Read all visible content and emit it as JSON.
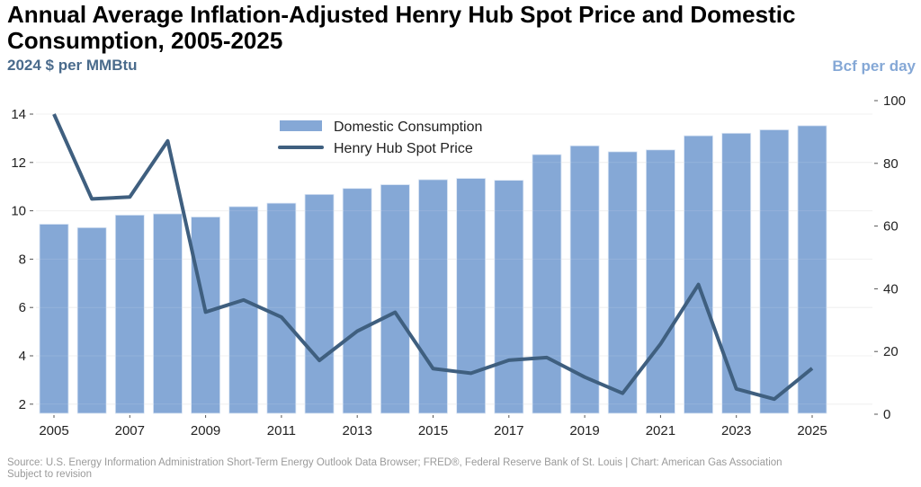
{
  "header": {
    "title": "Annual Average Inflation-Adjusted Henry Hub Spot Price and Domestic Consumption, 2005-2025",
    "left_axis_label": "2024 $ per MMBtu",
    "right_axis_label": "Bcf per day"
  },
  "footer": {
    "source": "Source: U.S. Energy Information Administration Short-Term Energy Outlook Data Browser; FRED®, Federal Reserve Bank of St. Louis | Chart: American Gas Association",
    "note": "Subject to revision"
  },
  "colors": {
    "bars": "#85a8d6",
    "line": "#3f5f7f",
    "left_axis_label": "#4a6b8c",
    "right_axis_label": "#85a8d6",
    "grid": "#eeeeee"
  },
  "chart_data": {
    "type": "bar+line",
    "title": "Annual Average Inflation-Adjusted Henry Hub Spot Price and Domestic Consumption, 2005-2025",
    "xlabel": "",
    "ylabel_left": "2024 $ per MMBtu",
    "ylabel_right": "Bcf per day",
    "x": [
      2005,
      2006,
      2007,
      2008,
      2009,
      2010,
      2011,
      2012,
      2013,
      2014,
      2015,
      2016,
      2017,
      2018,
      2019,
      2020,
      2021,
      2022,
      2023,
      2024,
      2025
    ],
    "x_tick_labels": [
      "2005",
      "2007",
      "2009",
      "2011",
      "2013",
      "2015",
      "2017",
      "2019",
      "2021",
      "2023",
      "2025"
    ],
    "y_left_ticks": [
      "2",
      "4",
      "6",
      "8",
      "10",
      "12",
      "14"
    ],
    "y_left_range": [
      1.6,
      14.6
    ],
    "y_right_ticks": [
      "0",
      "20",
      "40",
      "60",
      "80",
      "100"
    ],
    "y_right_range": [
      0,
      100
    ],
    "grid": true,
    "legend_position": "top-center",
    "series": [
      {
        "name": "Domestic Consumption",
        "type": "bar",
        "axis": "right",
        "values": [
          60.6,
          59.5,
          63.5,
          63.9,
          62.9,
          66.2,
          67.3,
          70.1,
          72.0,
          73.2,
          74.8,
          75.2,
          74.6,
          82.8,
          85.6,
          83.7,
          84.3,
          88.8,
          89.6,
          90.7,
          92.0
        ]
      },
      {
        "name": "Henry Hub Spot Price",
        "type": "line",
        "axis": "left",
        "values": [
          14.0,
          10.49,
          10.57,
          12.89,
          5.81,
          6.31,
          5.6,
          3.81,
          5.02,
          5.8,
          3.47,
          3.28,
          3.82,
          3.93,
          3.12,
          2.45,
          4.49,
          6.95,
          2.63,
          2.21,
          3.48
        ]
      }
    ]
  }
}
